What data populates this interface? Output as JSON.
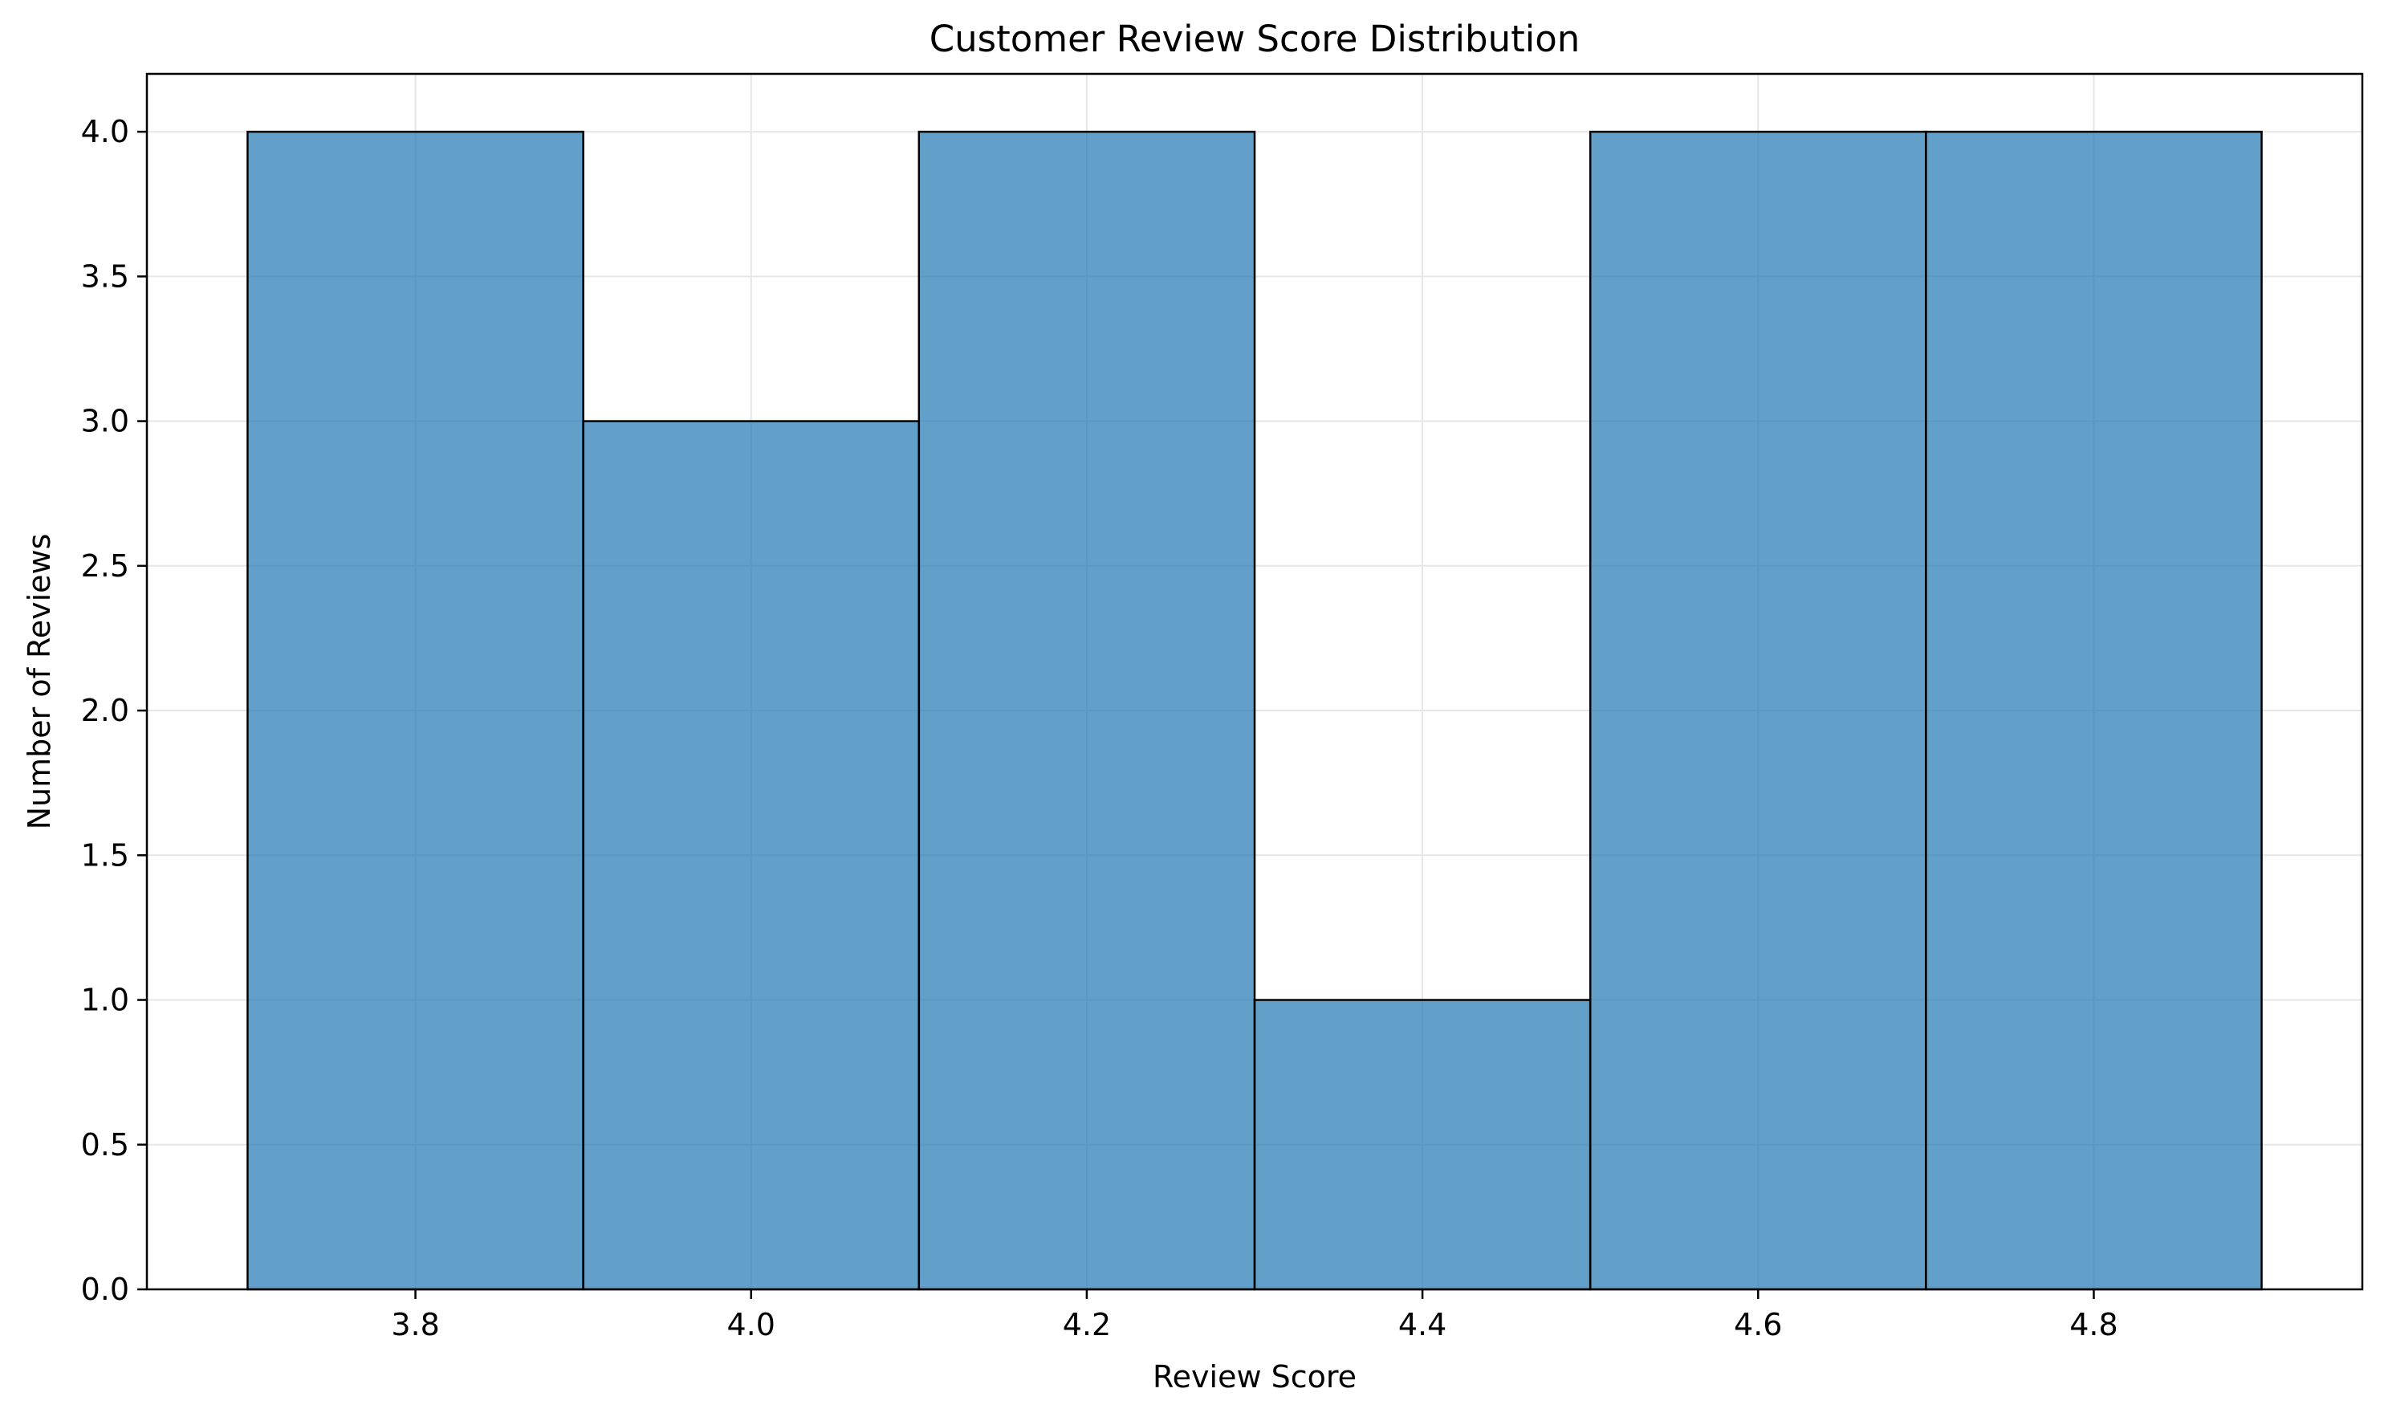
{
  "chart_data": {
    "type": "bar",
    "title": "Customer Review Score Distribution",
    "xlabel": "Review Score",
    "ylabel": "Number of Reviews",
    "bins": [
      {
        "start": 3.7,
        "end": 3.9,
        "value": 4
      },
      {
        "start": 3.9,
        "end": 4.1,
        "value": 3
      },
      {
        "start": 4.1,
        "end": 4.3,
        "value": 4
      },
      {
        "start": 4.3,
        "end": 4.5,
        "value": 1
      },
      {
        "start": 4.5,
        "end": 4.7,
        "value": 4
      },
      {
        "start": 4.7,
        "end": 4.9,
        "value": 4
      }
    ],
    "xlim": [
      3.64,
      4.96
    ],
    "ylim": [
      0,
      4.2
    ],
    "xticks": [
      3.8,
      4.0,
      4.2,
      4.4,
      4.6,
      4.8
    ],
    "xtick_labels": [
      "3.8",
      "4.0",
      "4.2",
      "4.4",
      "4.6",
      "4.8"
    ],
    "yticks": [
      0,
      0.5,
      1.0,
      1.5,
      2.0,
      2.5,
      3.0,
      3.5,
      4.0
    ],
    "ytick_labels": [
      "0.0",
      "0.5",
      "1.0",
      "1.5",
      "2.0",
      "2.5",
      "3.0",
      "3.5",
      "4.0"
    ],
    "grid": true,
    "colors": {
      "bar_fill": "#1f77b4",
      "bar_edge": "#000000",
      "grid": "#e6e6e6",
      "axis": "#000000"
    }
  }
}
